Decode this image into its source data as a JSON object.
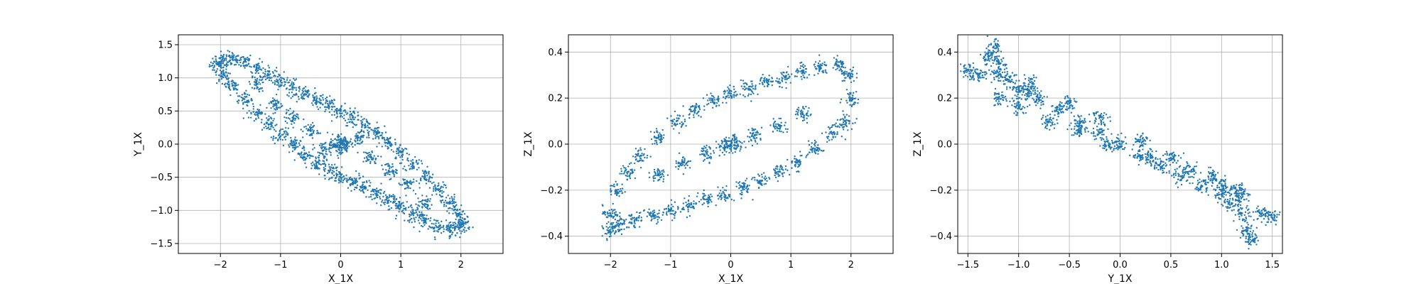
{
  "chart_data": [
    {
      "type": "scatter",
      "xlabel": "X_1X",
      "ylabel": "Y_1X",
      "xlim": [
        -2.7,
        2.7
      ],
      "ylim": [
        -1.65,
        1.65
      ],
      "xticks": [
        -2,
        -1,
        0,
        1,
        2
      ],
      "yticks": [
        -1.5,
        -1.0,
        -0.5,
        0.0,
        0.5,
        1.0,
        1.5
      ],
      "xtick_labels": [
        "−2",
        "−1",
        "0",
        "1",
        "2"
      ],
      "ytick_labels": [
        "−1.5",
        "−1.0",
        "−0.5",
        "0.0",
        "0.5",
        "1.0",
        "1.5"
      ],
      "grid": true,
      "color": "#1f77b4",
      "points": [
        [
          -2.05,
          1.2
        ],
        [
          -1.95,
          1.25
        ],
        [
          -1.8,
          1.28
        ],
        [
          -1.6,
          1.25
        ],
        [
          -1.4,
          1.15
        ],
        [
          -1.2,
          1.05
        ],
        [
          -1.0,
          0.95
        ],
        [
          -0.8,
          0.85
        ],
        [
          -0.6,
          0.75
        ],
        [
          -0.4,
          0.65
        ],
        [
          -0.2,
          0.58
        ],
        [
          0.0,
          0.5
        ],
        [
          0.2,
          0.4
        ],
        [
          0.4,
          0.28
        ],
        [
          0.6,
          0.15
        ],
        [
          0.8,
          0.02
        ],
        [
          1.0,
          -0.12
        ],
        [
          1.2,
          -0.3
        ],
        [
          1.4,
          -0.48
        ],
        [
          1.6,
          -0.68
        ],
        [
          1.8,
          -0.88
        ],
        [
          1.95,
          -1.05
        ],
        [
          2.05,
          -1.2
        ],
        [
          1.95,
          -1.25
        ],
        [
          1.8,
          -1.28
        ],
        [
          1.6,
          -1.25
        ],
        [
          1.4,
          -1.15
        ],
        [
          1.2,
          -1.05
        ],
        [
          1.0,
          -0.95
        ],
        [
          0.8,
          -0.85
        ],
        [
          0.6,
          -0.75
        ],
        [
          0.4,
          -0.65
        ],
        [
          0.2,
          -0.58
        ],
        [
          0.0,
          -0.5
        ],
        [
          -0.2,
          -0.4
        ],
        [
          -0.4,
          -0.28
        ],
        [
          -0.6,
          -0.15
        ],
        [
          -0.8,
          -0.02
        ],
        [
          -1.0,
          0.12
        ],
        [
          -1.2,
          0.3
        ],
        [
          -1.4,
          0.48
        ],
        [
          -1.6,
          0.68
        ],
        [
          -1.8,
          0.88
        ],
        [
          -1.95,
          1.05
        ],
        [
          0.1,
          0.0
        ],
        [
          0.0,
          0.05
        ],
        [
          -0.1,
          0.0
        ],
        [
          0.0,
          -0.05
        ],
        [
          0.3,
          0.1
        ],
        [
          -0.3,
          -0.1
        ],
        [
          0.5,
          -0.2
        ],
        [
          -0.5,
          0.2
        ],
        [
          0.8,
          -0.4
        ],
        [
          -0.8,
          0.4
        ],
        [
          1.1,
          -0.6
        ],
        [
          -1.1,
          0.6
        ],
        [
          1.4,
          -0.9
        ],
        [
          -1.4,
          0.9
        ]
      ]
    },
    {
      "type": "scatter",
      "xlabel": "X_1X",
      "ylabel": "Z_1X",
      "xlim": [
        -2.7,
        2.7
      ],
      "ylim": [
        -0.475,
        0.475
      ],
      "xticks": [
        -2,
        -1,
        0,
        1,
        2
      ],
      "yticks": [
        -0.4,
        -0.2,
        0.0,
        0.2,
        0.4
      ],
      "xtick_labels": [
        "−2",
        "−1",
        "0",
        "1",
        "2"
      ],
      "ytick_labels": [
        "−0.4",
        "−0.2",
        "0.0",
        "0.2",
        "0.4"
      ],
      "grid": true,
      "color": "#1f77b4",
      "points": [
        [
          -2.0,
          -0.3
        ],
        [
          -1.9,
          -0.2
        ],
        [
          -1.7,
          -0.12
        ],
        [
          -1.5,
          -0.05
        ],
        [
          -1.2,
          0.03
        ],
        [
          -0.9,
          0.1
        ],
        [
          -0.6,
          0.15
        ],
        [
          -0.3,
          0.19
        ],
        [
          0.0,
          0.22
        ],
        [
          0.3,
          0.24
        ],
        [
          0.6,
          0.27
        ],
        [
          0.9,
          0.29
        ],
        [
          1.2,
          0.31
        ],
        [
          1.5,
          0.33
        ],
        [
          1.8,
          0.34
        ],
        [
          1.95,
          0.3
        ],
        [
          2.0,
          0.2
        ],
        [
          1.9,
          0.1
        ],
        [
          1.7,
          0.05
        ],
        [
          1.4,
          -0.02
        ],
        [
          1.1,
          -0.08
        ],
        [
          0.8,
          -0.12
        ],
        [
          0.5,
          -0.16
        ],
        [
          0.2,
          -0.19
        ],
        [
          -0.1,
          -0.22
        ],
        [
          -0.4,
          -0.24
        ],
        [
          -0.7,
          -0.27
        ],
        [
          -1.0,
          -0.29
        ],
        [
          -1.3,
          -0.31
        ],
        [
          -1.6,
          -0.33
        ],
        [
          -1.85,
          -0.35
        ],
        [
          -2.0,
          -0.38
        ],
        [
          0.0,
          0.0
        ],
        [
          0.1,
          0.01
        ],
        [
          -0.1,
          -0.01
        ],
        [
          0.4,
          0.04
        ],
        [
          -0.4,
          -0.04
        ],
        [
          0.8,
          0.08
        ],
        [
          -0.8,
          -0.08
        ],
        [
          1.2,
          0.13
        ],
        [
          -1.2,
          -0.13
        ]
      ]
    },
    {
      "type": "scatter",
      "xlabel": "Y_1X",
      "ylabel": "Z_1X",
      "xlim": [
        -1.6,
        1.6
      ],
      "ylim": [
        -0.475,
        0.475
      ],
      "xticks": [
        -1.5,
        -1.0,
        -0.5,
        0.0,
        0.5,
        1.0,
        1.5
      ],
      "yticks": [
        -0.4,
        -0.2,
        0.0,
        0.2,
        0.4
      ],
      "xtick_labels": [
        "−1.5",
        "−1.0",
        "−0.5",
        "0.0",
        "0.5",
        "1.0",
        "1.5"
      ],
      "ytick_labels": [
        "−0.4",
        "−0.2",
        "0.0",
        "0.2",
        "0.4"
      ],
      "grid": true,
      "color": "#1f77b4",
      "points": [
        [
          -1.5,
          0.32
        ],
        [
          -1.4,
          0.3
        ],
        [
          -1.3,
          0.38
        ],
        [
          -1.25,
          0.42
        ],
        [
          -1.2,
          0.35
        ],
        [
          -1.1,
          0.28
        ],
        [
          -1.0,
          0.24
        ],
        [
          -0.9,
          0.22
        ],
        [
          -0.8,
          0.2
        ],
        [
          -0.6,
          0.15
        ],
        [
          -0.4,
          0.1
        ],
        [
          -0.2,
          0.05
        ],
        [
          0.0,
          0.0
        ],
        [
          0.2,
          -0.05
        ],
        [
          0.4,
          -0.1
        ],
        [
          0.6,
          -0.14
        ],
        [
          0.8,
          -0.18
        ],
        [
          1.0,
          -0.22
        ],
        [
          1.1,
          -0.26
        ],
        [
          1.2,
          -0.3
        ],
        [
          1.25,
          -0.38
        ],
        [
          1.3,
          -0.42
        ],
        [
          1.4,
          -0.3
        ],
        [
          1.5,
          -0.32
        ],
        [
          -1.2,
          0.2
        ],
        [
          -1.0,
          0.16
        ],
        [
          -0.7,
          0.1
        ],
        [
          -0.4,
          0.06
        ],
        [
          -0.1,
          0.0
        ],
        [
          0.3,
          -0.06
        ],
        [
          0.7,
          -0.12
        ],
        [
          1.0,
          -0.18
        ],
        [
          1.2,
          -0.22
        ],
        [
          -1.2,
          0.3
        ],
        [
          -0.9,
          0.26
        ],
        [
          -0.5,
          0.18
        ],
        [
          -0.2,
          0.12
        ],
        [
          0.2,
          0.02
        ],
        [
          0.5,
          -0.06
        ],
        [
          0.9,
          -0.14
        ],
        [
          1.15,
          -0.2
        ]
      ]
    }
  ]
}
